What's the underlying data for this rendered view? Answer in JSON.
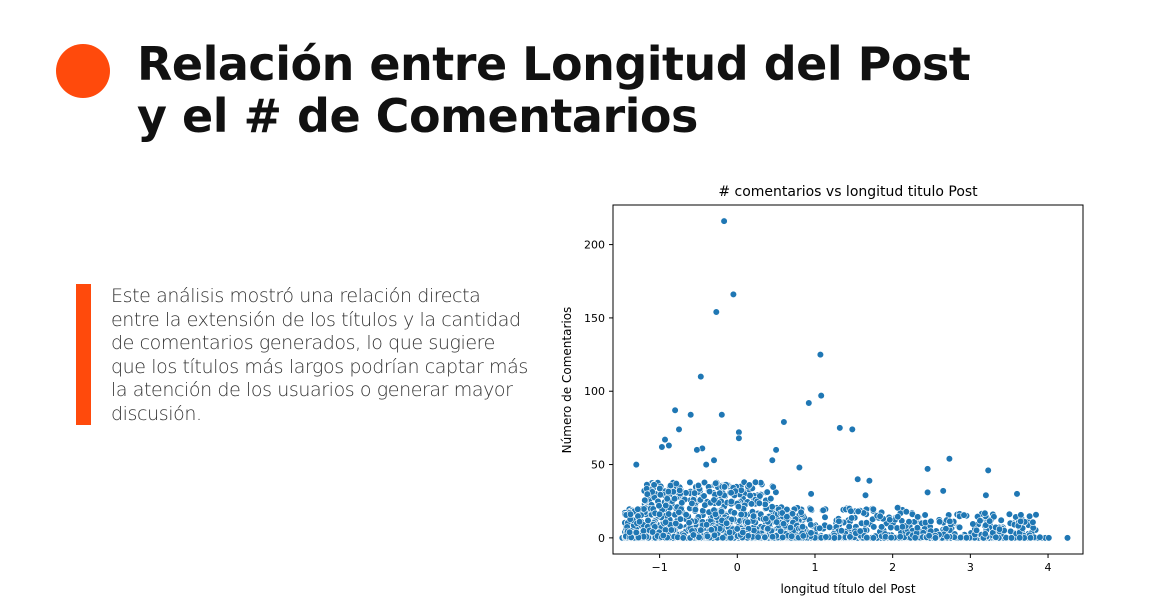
{
  "slide": {
    "title_line1": "Relación entre Longitud del Post",
    "title_line2": "y el # de Comentarios",
    "body_text": "Este análisis mostró una relación directa entre la extensión de los títulos y la cantidad de comentarios generados, lo que sugiere que los títulos más largos podrían captar más la atención de los usuarios o generar mayor discusión.",
    "accent_color": "#ff4a0c"
  },
  "chart_data": {
    "type": "scatter",
    "title": "# comentarios vs longitud titulo Post",
    "xlabel": "longitud título del Post",
    "ylabel": "Número de Comentarios",
    "xlim": [
      -1.6,
      4.45
    ],
    "ylim": [
      -11,
      227
    ],
    "xticks": [
      -1,
      0,
      1,
      2,
      3,
      4
    ],
    "xtick_labels": [
      "−1",
      "0",
      "1",
      "2",
      "3",
      "4"
    ],
    "yticks": [
      0,
      50,
      100,
      150,
      200
    ],
    "ytick_labels": [
      "0",
      "50",
      "100",
      "150",
      "200"
    ],
    "grid": false,
    "point_color": "#1f77b4",
    "notable_points": [
      {
        "x": -0.17,
        "y": 216
      },
      {
        "x": -0.05,
        "y": 166
      },
      {
        "x": -0.27,
        "y": 154
      },
      {
        "x": 1.07,
        "y": 125
      },
      {
        "x": -0.47,
        "y": 110
      },
      {
        "x": 1.08,
        "y": 97
      },
      {
        "x": 0.92,
        "y": 92
      },
      {
        "x": -0.8,
        "y": 87
      },
      {
        "x": -0.2,
        "y": 84
      },
      {
        "x": -0.6,
        "y": 84
      },
      {
        "x": 0.6,
        "y": 79
      },
      {
        "x": 1.32,
        "y": 75
      },
      {
        "x": 1.48,
        "y": 74
      },
      {
        "x": -0.75,
        "y": 74
      },
      {
        "x": 0.02,
        "y": 72
      },
      {
        "x": 0.02,
        "y": 68
      },
      {
        "x": -0.93,
        "y": 67
      },
      {
        "x": -0.88,
        "y": 63
      },
      {
        "x": -0.97,
        "y": 62
      },
      {
        "x": -0.45,
        "y": 61
      },
      {
        "x": 0.5,
        "y": 60
      },
      {
        "x": -0.52,
        "y": 60
      },
      {
        "x": 2.73,
        "y": 54
      },
      {
        "x": -0.3,
        "y": 53
      },
      {
        "x": -1.3,
        "y": 50
      },
      {
        "x": 0.45,
        "y": 53
      },
      {
        "x": -0.4,
        "y": 50
      },
      {
        "x": 0.8,
        "y": 48
      },
      {
        "x": 2.45,
        "y": 47
      },
      {
        "x": 3.23,
        "y": 46
      },
      {
        "x": 1.55,
        "y": 40
      },
      {
        "x": 1.7,
        "y": 39
      },
      {
        "x": 2.65,
        "y": 32
      },
      {
        "x": 3.6,
        "y": 30
      },
      {
        "x": 2.45,
        "y": 31
      },
      {
        "x": 0.95,
        "y": 30
      },
      {
        "x": 1.65,
        "y": 29
      },
      {
        "x": 3.2,
        "y": 29
      },
      {
        "x": 4.25,
        "y": 0
      }
    ]
  }
}
